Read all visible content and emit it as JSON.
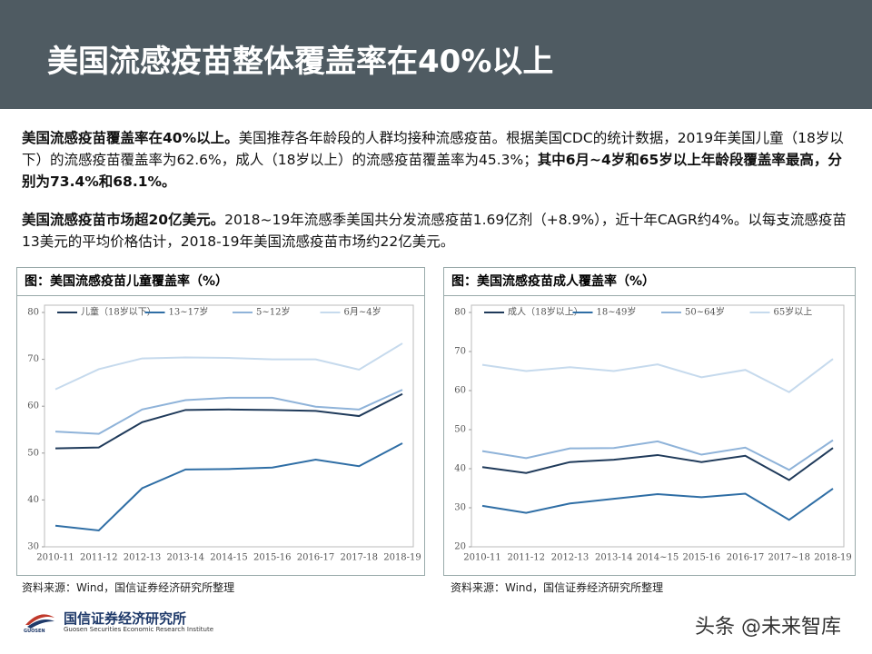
{
  "header": {
    "title": "美国流感疫苗整体覆盖率在40%以上"
  },
  "paragraphs": [
    [
      {
        "text": "美国流感疫苗覆盖率在40%以上。",
        "bold": true
      },
      {
        "text": "美国推荐各年龄段的人群均接种流感疫苗。根据美国CDC的统计数据，2019年美国儿童（18岁以下）的流感疫苗覆盖率为62.6%，成人（18岁以上）的流感疫苗覆盖率为45.3%；",
        "bold": false
      },
      {
        "text": "其中6月~4岁和65岁以上年龄段覆盖率最高，分别为73.4%和68.1%。",
        "bold": true
      }
    ],
    [
      {
        "text": "美国流感疫苗市场超20亿美元。",
        "bold": true
      },
      {
        "text": "2018~19年流感季美国共分发流感疫苗1.69亿剂（+8.9%），近十年CAGR约4%。以每支流感疫苗13美元的平均价格估计，2018-19年美国流感疫苗市场约22亿美元。",
        "bold": false
      }
    ]
  ],
  "chart_data": [
    {
      "type": "line",
      "title": "图：美国流感疫苗儿童覆盖率（%）",
      "categories": [
        "2010-11",
        "2011-12",
        "2012-13",
        "2013-14",
        "2014-15",
        "2015-16",
        "2016-17",
        "2017-18",
        "2018-19"
      ],
      "ylim": [
        30,
        80
      ],
      "yticks": [
        30,
        40,
        50,
        60,
        70,
        80
      ],
      "series": [
        {
          "name": "儿童（18岁以下）",
          "color": "#1f3a5a",
          "values": [
            51,
            51.2,
            56.6,
            59.2,
            59.3,
            59.2,
            59,
            57.9,
            62.6
          ]
        },
        {
          "name": "13~17岁",
          "color": "#2f6ea5",
          "values": [
            34.5,
            33.5,
            42.5,
            46.5,
            46.6,
            46.9,
            48.6,
            47.2,
            52.1
          ]
        },
        {
          "name": "5~12岁",
          "color": "#8fb3d9",
          "values": [
            54.6,
            54.1,
            59.3,
            61.3,
            61.8,
            61.8,
            59.9,
            59.3,
            63.5
          ]
        },
        {
          "name": "6月~4岁",
          "color": "#c6daed",
          "values": [
            63.6,
            67.9,
            70.2,
            70.4,
            70.3,
            70,
            70,
            67.8,
            73.4
          ]
        }
      ],
      "source": "资料来源：Wind，国信证券经济研究所整理"
    },
    {
      "type": "line",
      "title": "图：美国流感疫苗成人覆盖率（%）",
      "categories": [
        "2010-11",
        "2011-12",
        "2012-13",
        "2013-14",
        "2014~15",
        "2015-16",
        "2016-17",
        "2017~18",
        "2018-19"
      ],
      "ylim": [
        20,
        80
      ],
      "yticks": [
        20,
        30,
        40,
        50,
        60,
        70,
        80
      ],
      "series": [
        {
          "name": "成人（18岁以上）",
          "color": "#1f3a5a",
          "values": [
            40.4,
            38.9,
            41.7,
            42.3,
            43.5,
            41.7,
            43.3,
            37.1,
            45.3
          ]
        },
        {
          "name": "18~49岁",
          "color": "#2f6ea5",
          "values": [
            30.5,
            28.7,
            31.1,
            32.3,
            33.5,
            32.7,
            33.6,
            26.9,
            34.9
          ]
        },
        {
          "name": "50~64岁",
          "color": "#8fb3d9",
          "values": [
            44.5,
            42.7,
            45.2,
            45.3,
            47,
            43.6,
            45.4,
            39.7,
            47.3
          ]
        },
        {
          "name": "65岁以上",
          "color": "#c6daed",
          "values": [
            66.6,
            65,
            66,
            65,
            66.7,
            63.4,
            65.3,
            59.6,
            68.1
          ]
        }
      ],
      "source": "资料来源：Wind，国信证券经济研究所整理"
    }
  ],
  "footer": {
    "logo": "GUOSEN",
    "name": "国信证券经济研究所",
    "name_en": "Guosen Securities Economic Research Institute",
    "watermark": "头条 @未来智库"
  }
}
